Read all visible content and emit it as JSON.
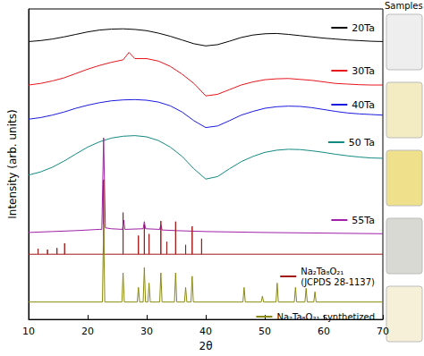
{
  "chart_data": {
    "type": "line",
    "xlabel": "2θ",
    "ylabel": "Intensity (arb. units)",
    "annotation": "Samples",
    "xlim": [
      10,
      70
    ],
    "xticks": [
      10,
      20,
      30,
      40,
      50,
      60,
      70
    ],
    "ylim": [
      0,
      100
    ],
    "tick_labels": "x",
    "grid": false,
    "series": [
      {
        "name": "20Ta",
        "color": "#000000",
        "x": [
          10,
          12,
          14,
          16,
          18,
          20,
          22,
          24,
          26,
          28,
          30,
          32,
          34,
          36,
          38,
          40,
          42,
          44,
          46,
          48,
          50,
          52,
          54,
          56,
          58,
          60,
          62,
          64,
          66,
          68,
          70
        ],
        "values": [
          89.5,
          89.8,
          90.3,
          91,
          91.8,
          92.6,
          93.2,
          93.5,
          93.6,
          93.4,
          93,
          92.2,
          91.2,
          90,
          88.8,
          88.1,
          88.5,
          89.6,
          90.8,
          91.6,
          92,
          92.1,
          91.8,
          91.4,
          91,
          90.6,
          90.3,
          90,
          89.8,
          89.6,
          89.5
        ]
      },
      {
        "name": "30Ta",
        "color": "#e8141b",
        "x": [
          10,
          12,
          14,
          16,
          18,
          20,
          22,
          24,
          26,
          27,
          28,
          30,
          32,
          34,
          36,
          38,
          40,
          42,
          44,
          46,
          48,
          50,
          52,
          54,
          56,
          58,
          60,
          62,
          64,
          66,
          68,
          70
        ],
        "values": [
          75.5,
          76,
          76.8,
          77.8,
          79.2,
          80.6,
          81.8,
          82.8,
          83.6,
          86,
          84,
          84,
          83.2,
          81.5,
          79,
          76,
          72,
          72.5,
          74,
          75.5,
          76.5,
          77.2,
          77.5,
          77.6,
          77.3,
          77,
          76.5,
          76,
          75.8,
          75.6,
          75.5,
          75.5
        ]
      },
      {
        "name": "40Ta",
        "color": "#1a1ae0",
        "x": [
          10,
          12,
          14,
          16,
          18,
          20,
          22,
          24,
          26,
          28,
          30,
          32,
          34,
          36,
          38,
          40,
          42,
          44,
          46,
          48,
          50,
          52,
          54,
          56,
          58,
          60,
          62,
          64,
          66,
          68,
          70
        ],
        "values": [
          64.5,
          65,
          65.8,
          66.8,
          68,
          69,
          69.8,
          70.4,
          70.7,
          70.8,
          70.6,
          70,
          68.8,
          66.8,
          64,
          61.8,
          62.3,
          64,
          65.8,
          67,
          68,
          68.5,
          68.7,
          68.6,
          68.2,
          67.6,
          67,
          66.5,
          66.2,
          66,
          65.8
        ]
      },
      {
        "name": "50 Ta",
        "color": "#138a82",
        "x": [
          10,
          12,
          14,
          16,
          18,
          20,
          22,
          24,
          26,
          28,
          30,
          32,
          34,
          36,
          38,
          40,
          42,
          44,
          46,
          48,
          50,
          52,
          54,
          56,
          58,
          60,
          62,
          64,
          66,
          68,
          70
        ],
        "values": [
          46.5,
          47.5,
          49,
          51,
          53.3,
          55.5,
          57.2,
          58.4,
          59,
          59.2,
          58.8,
          57.6,
          55.5,
          52.5,
          48.5,
          45.2,
          46,
          48.5,
          50.8,
          52.5,
          53.8,
          54.5,
          54.8,
          54.7,
          54.3,
          53.8,
          53.2,
          52.7,
          52.3,
          52,
          51.9
        ]
      },
      {
        "name": "55Ta",
        "color": "#a020a8",
        "x": [
          10,
          14,
          18,
          20,
          22,
          22.4,
          22.7,
          23,
          24,
          25.9,
          26.1,
          26.3,
          29.4,
          29.6,
          29.8,
          32.2,
          32.4,
          32.6,
          35,
          40,
          50,
          60,
          70
        ],
        "values": [
          28,
          28.3,
          28.6,
          28.8,
          29,
          29,
          58.5,
          29.5,
          29.2,
          29,
          32,
          29,
          29.2,
          31.5,
          29.2,
          29,
          30.5,
          28.8,
          28.6,
          28.3,
          28,
          27.8,
          27.6
        ]
      },
      {
        "name": "Na₂Ta₈O₂₁\n(JCPDS 28-1137)",
        "color": "#a01818",
        "x": [
          10,
          11.6,
          11.6,
          11.6,
          13.2,
          13.2,
          13.2,
          14.8,
          14.8,
          14.8,
          16.1,
          16.1,
          16.1,
          22.7,
          22.7,
          22.7,
          26.0,
          26.0,
          26.0,
          28.6,
          28.6,
          28.6,
          29.6,
          29.6,
          29.6,
          30.4,
          30.4,
          30.4,
          32.4,
          32.4,
          32.4,
          33.4,
          33.4,
          33.4,
          34.9,
          34.9,
          34.9,
          36.6,
          36.6,
          36.6,
          37.7,
          37.7,
          37.7,
          39.3,
          39.3,
          39.3,
          70
        ],
        "values": [
          21,
          21,
          22.8,
          21,
          21,
          22.5,
          21,
          21,
          23,
          21,
          21,
          24.5,
          21,
          21,
          45,
          21,
          21,
          34.4,
          21,
          21,
          27,
          21,
          21,
          30.5,
          21,
          21,
          27.5,
          21,
          21,
          31.7,
          21,
          21,
          25,
          21,
          21,
          31.5,
          21,
          21,
          24,
          21,
          21,
          30,
          21,
          21,
          26,
          21,
          21
        ]
      },
      {
        "name": "Na₂Ta₈O₂₁ synthetized",
        "color": "#8a8a10",
        "x": [
          10,
          22.5,
          22.7,
          22.9,
          25.8,
          26.0,
          26.2,
          28.4,
          28.6,
          28.8,
          29.4,
          29.6,
          29.8,
          30.2,
          30.4,
          30.6,
          32.2,
          32.4,
          32.6,
          34.7,
          34.9,
          35.1,
          36.4,
          36.6,
          36.8,
          37.5,
          37.7,
          37.9,
          46.3,
          46.5,
          46.7,
          49.4,
          49.6,
          49.8,
          51.9,
          52.1,
          52.3,
          55.0,
          55.2,
          55.4,
          56.8,
          57.0,
          57.2,
          58.3,
          58.5,
          58.7,
          70
        ],
        "values": [
          5.6,
          5.6,
          30.6,
          5.6,
          5.6,
          15,
          5.6,
          5.6,
          10.3,
          5.6,
          5.6,
          16.7,
          5.6,
          5.6,
          11.7,
          5.6,
          5.6,
          15,
          5.6,
          5.6,
          15,
          5.6,
          5.6,
          10.3,
          5.6,
          5.6,
          13.9,
          5.6,
          5.6,
          10.3,
          5.6,
          5.6,
          7.5,
          5.6,
          5.6,
          11.7,
          5.6,
          5.6,
          10.3,
          5.6,
          5.6,
          10,
          5.6,
          5.6,
          8.9,
          5.6,
          5.6
        ]
      }
    ]
  }
}
